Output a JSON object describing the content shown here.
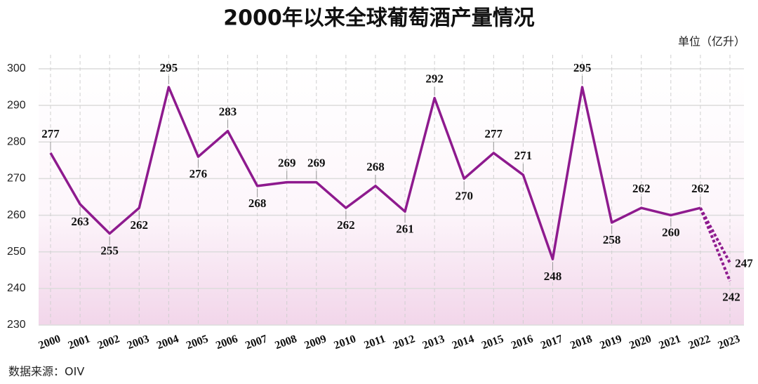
{
  "chart_data": {
    "type": "line",
    "title": "2000年以来全球葡萄酒产量情况",
    "unit_label": "单位（亿升）",
    "source": "数据来源：OIV",
    "categories": [
      "2000",
      "2001",
      "2002",
      "2003",
      "2004",
      "2005",
      "2006",
      "2007",
      "2008",
      "2009",
      "2010",
      "2011",
      "2012",
      "2013",
      "2014",
      "2015",
      "2016",
      "2017",
      "2018",
      "2019",
      "2020",
      "2021",
      "2022",
      "2023"
    ],
    "series": [
      {
        "color": "#8e1a8e",
        "line_style": "solid",
        "values": [
          277,
          263,
          255,
          262,
          295,
          276,
          283,
          268,
          269,
          269,
          262,
          268,
          261,
          292,
          270,
          277,
          271,
          248,
          295,
          258,
          262,
          260,
          262,
          null
        ]
      },
      {
        "color": "#8e1a8e",
        "line_style": "dotted",
        "values": [
          null,
          null,
          null,
          null,
          null,
          null,
          null,
          null,
          null,
          null,
          null,
          null,
          null,
          null,
          null,
          null,
          null,
          null,
          null,
          null,
          null,
          null,
          262,
          247
        ]
      },
      {
        "color": "#8e1a8e",
        "line_style": "dotted",
        "values": [
          null,
          null,
          null,
          null,
          null,
          null,
          null,
          null,
          null,
          null,
          null,
          null,
          null,
          null,
          null,
          null,
          null,
          null,
          null,
          null,
          null,
          null,
          262,
          242
        ]
      }
    ],
    "ylim": [
      230,
      300
    ],
    "yticks": [
      230,
      240,
      250,
      260,
      270,
      280,
      290,
      300
    ],
    "grid": true
  }
}
